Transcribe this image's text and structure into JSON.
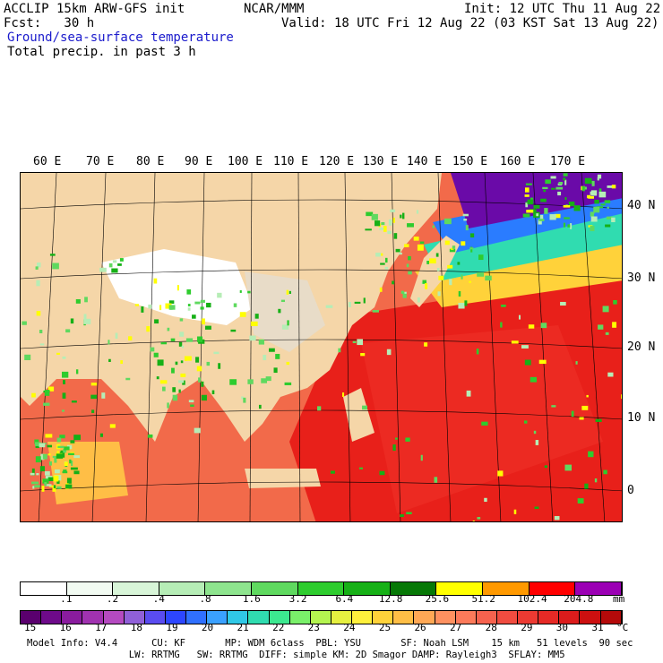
{
  "header": {
    "line1_left": "ACCLIP 15km ARW-GFS init",
    "line1_mid": "NCAR/MMM",
    "line1_right": "Init: 12 UTC Thu 11 Aug 22",
    "line2_left": "Fcst:   30 h",
    "line2_right": "Valid: 18 UTC Fri 12 Aug 22 (03 KST Sat 13 Aug 22)",
    "field1": "Ground/sea-surface temperature",
    "field2": "Total precip. in past 3 h"
  },
  "map": {
    "lon_labels": [
      "60 E",
      "70 E",
      "80 E",
      "90 E",
      "100 E",
      "110 E",
      "120 E",
      "130 E",
      "140 E",
      "150 E",
      "160 E",
      "170 E"
    ],
    "lat_labels": [
      "40 N",
      "30 N",
      "20 N",
      "10 N",
      "0"
    ],
    "colors": {
      "land": "#f5d6a8",
      "plateau": "#ffffff",
      "warm_sea": "#e8201a",
      "hot_sea": "#f03a28",
      "mild_sea": "#f26a4a",
      "cool_sea": "#ffd23a",
      "cold_sea": "#2a7cff",
      "very_cold_sea": "#6a0aa8",
      "precip": "#33cc33"
    }
  },
  "precip_scale": {
    "ticks": [
      ".1",
      ".2",
      ".4",
      ".8",
      "1.6",
      "3.2",
      "6.4",
      "12.8",
      "25.6",
      "51.2",
      "102.4",
      "204.8"
    ],
    "unit": "mm",
    "colors": [
      "#ffffff",
      "#f2fbf2",
      "#d8f5d8",
      "#b6edb6",
      "#8ee48e",
      "#5fd95f",
      "#2ecc2e",
      "#16b016",
      "#067806",
      "#ffff00",
      "#ff9900",
      "#ff0000",
      "#9b00b4"
    ]
  },
  "temp_scale": {
    "ticks": [
      "15",
      "16",
      "17",
      "18",
      "19",
      "20",
      "21",
      "22",
      "23",
      "24",
      "25",
      "26",
      "27",
      "28",
      "29",
      "30",
      "31"
    ],
    "unit": "°C",
    "colors": [
      "#5a006e",
      "#6e0a8a",
      "#8a1c9e",
      "#a032b0",
      "#b44ac0",
      "#9060d8",
      "#5a4cf0",
      "#2d46ff",
      "#3070ff",
      "#3aa0ff",
      "#30c8e6",
      "#30dcb0",
      "#3ce890",
      "#7af06a",
      "#b4f450",
      "#e6f040",
      "#fff03c",
      "#ffd23a",
      "#ffbe46",
      "#ffa855",
      "#ff9160",
      "#fc7a5a",
      "#f6624e",
      "#f04c40",
      "#ec3a32",
      "#e62a26",
      "#dc1c1c",
      "#cc1010",
      "#b40a0a"
    ]
  },
  "footer": {
    "line1": "Model Info: V4.4      CU: KF       MP: WDM 6class  PBL: YSU       SF: Noah LSM    15 km   51 levels  90 sec",
    "line2": "                  LW: RRTMG   SW: RRTMG  DIFF: simple KM: 2D Smagor DAMP: Rayleigh3  SFLAY: MM5"
  }
}
